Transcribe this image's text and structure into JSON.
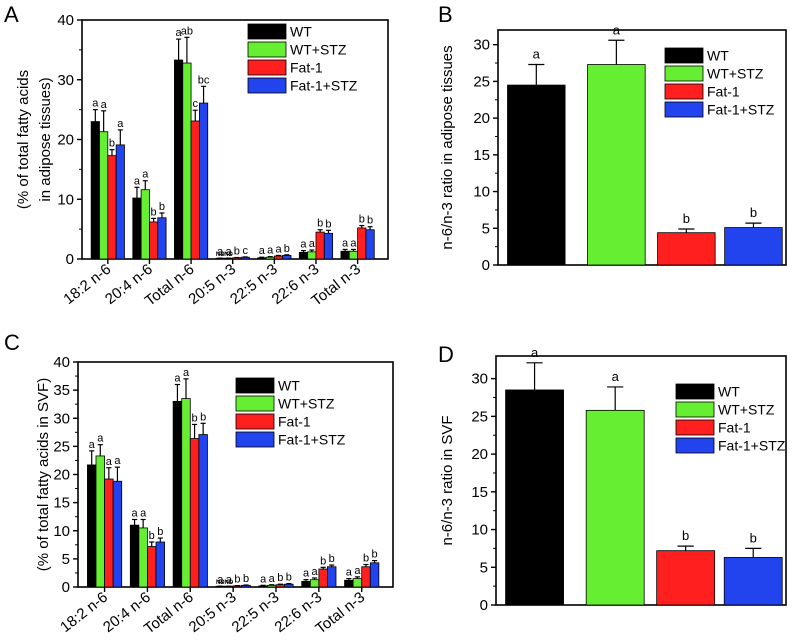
{
  "series_names": [
    "WT",
    "WT+STZ",
    "Fat-1",
    "Fat-1+STZ"
  ],
  "colors": {
    "WT": "#000000",
    "WT+STZ": "#66ee33",
    "Fat-1": "#ff1f1f",
    "Fat-1+STZ": "#2244ee"
  },
  "chart_data": [
    {
      "panel": "A",
      "type": "bar",
      "ylabel": "(% of total fatty acids in adipose tissues)",
      "ylabel_lines": [
        "(% of total fatty acids",
        "in adipose tissues)"
      ],
      "ylim": [
        0,
        40
      ],
      "yticks": [
        "0",
        "10",
        "20",
        "30",
        "40"
      ],
      "categories": [
        "18:2 n-6",
        "20:4 n-6",
        "Total n-6",
        "20:5 n-3",
        "22:5 n-3",
        "22:6 n-3",
        "Total n-3"
      ],
      "series": [
        {
          "name": "WT",
          "values": [
            23.0,
            10.2,
            33.3,
            0.1,
            0.2,
            1.1,
            1.3
          ],
          "errors": [
            2.0,
            1.8,
            3.5,
            0.05,
            0.1,
            0.3,
            0.3
          ]
        },
        {
          "name": "WT+STZ",
          "values": [
            21.3,
            11.6,
            32.8,
            0.1,
            0.3,
            1.2,
            1.3
          ],
          "errors": [
            3.5,
            1.5,
            4.3,
            0.05,
            0.1,
            0.3,
            0.3
          ]
        },
        {
          "name": "Fat-1",
          "values": [
            17.3,
            6.2,
            23.1,
            0.2,
            0.5,
            4.5,
            5.2
          ],
          "errors": [
            1.0,
            0.6,
            1.8,
            0.05,
            0.1,
            0.4,
            0.4
          ]
        },
        {
          "name": "Fat-1+STZ",
          "values": [
            19.1,
            6.9,
            26.1,
            0.3,
            0.6,
            4.3,
            4.9
          ],
          "errors": [
            2.5,
            0.8,
            2.8,
            0.05,
            0.1,
            0.5,
            0.5
          ]
        }
      ],
      "labels": [
        [
          "a",
          "a",
          "a",
          "a",
          "a",
          "a",
          "a"
        ],
        [
          "a",
          "a",
          "ab",
          "a",
          "a",
          "a",
          "a"
        ],
        [
          "b",
          "b",
          "c",
          "b",
          "a",
          "b",
          "b"
        ],
        [
          "a",
          "b",
          "bc",
          "c",
          "b",
          "b",
          "b"
        ]
      ],
      "nd": [
        [
          false,
          false,
          false,
          true,
          false,
          false,
          false
        ],
        [
          false,
          false,
          false,
          true,
          false,
          false,
          false
        ],
        [
          false,
          false,
          false,
          false,
          false,
          false,
          false
        ],
        [
          false,
          false,
          false,
          false,
          false,
          false,
          false
        ]
      ],
      "nd_text": "ND"
    },
    {
      "panel": "B",
      "type": "bar",
      "ylabel": "n-6/n-3 ratio in adipose tissues",
      "ylim": [
        0,
        32
      ],
      "yticks": [
        "0",
        "5",
        "10",
        "15",
        "20",
        "25",
        "30"
      ],
      "categories": [
        "WT",
        "WT+STZ",
        "Fat-1",
        "Fat-1+STZ"
      ],
      "values": [
        24.5,
        27.3,
        4.4,
        5.1
      ],
      "errors": [
        2.8,
        3.3,
        0.5,
        0.6
      ],
      "labels": [
        "a",
        "a",
        "b",
        "b"
      ]
    },
    {
      "panel": "C",
      "type": "bar",
      "ylabel": "(% of total fatty acids in SVF)",
      "ylim": [
        0,
        40
      ],
      "yticks": [
        "0",
        "5",
        "10",
        "15",
        "20",
        "25",
        "30",
        "35",
        "40"
      ],
      "categories": [
        "18:2 n-6",
        "20:4 n-6",
        "Total n-6",
        "20:5 n-3",
        "22:5 n-3",
        "22:6 n-3",
        "Total n-3"
      ],
      "series": [
        {
          "name": "WT",
          "values": [
            21.7,
            11.0,
            33.0,
            0.1,
            0.2,
            1.0,
            1.2
          ],
          "errors": [
            2.5,
            1.0,
            3.0,
            0.05,
            0.1,
            0.3,
            0.3
          ]
        },
        {
          "name": "WT+STZ",
          "values": [
            23.3,
            10.5,
            33.5,
            0.1,
            0.3,
            1.3,
            1.5
          ],
          "errors": [
            2.0,
            1.5,
            3.5,
            0.05,
            0.1,
            0.3,
            0.3
          ]
        },
        {
          "name": "Fat-1",
          "values": [
            19.2,
            7.2,
            26.4,
            0.2,
            0.4,
            3.2,
            3.6
          ],
          "errors": [
            2.0,
            0.8,
            2.5,
            0.05,
            0.1,
            0.3,
            0.4
          ]
        },
        {
          "name": "Fat-1+STZ",
          "values": [
            18.8,
            8.0,
            27.1,
            0.3,
            0.5,
            3.6,
            4.3
          ],
          "errors": [
            2.5,
            0.7,
            2.0,
            0.05,
            0.1,
            0.3,
            0.4
          ]
        }
      ],
      "labels": [
        [
          "a",
          "a",
          "a",
          "a",
          "a",
          "a",
          "a"
        ],
        [
          "a",
          "a",
          "a",
          "a",
          "a",
          "a",
          "a"
        ],
        [
          "a",
          "b",
          "b",
          "b",
          "b",
          "b",
          "b"
        ],
        [
          "a",
          "b",
          "b",
          "b",
          "b",
          "b",
          "b"
        ]
      ],
      "nd": [
        [
          false,
          false,
          false,
          true,
          false,
          false,
          false
        ],
        [
          false,
          false,
          false,
          true,
          false,
          false,
          false
        ],
        [
          false,
          false,
          false,
          false,
          false,
          false,
          false
        ],
        [
          false,
          false,
          false,
          false,
          false,
          false,
          false
        ]
      ],
      "nd_text": "ND"
    },
    {
      "panel": "D",
      "type": "bar",
      "ylabel": "n-6/n-3 ratio in SVF",
      "ylim": [
        0,
        33
      ],
      "yticks": [
        "0",
        "5",
        "10",
        "15",
        "20",
        "25",
        "30"
      ],
      "categories": [
        "WT",
        "WT+STZ",
        "Fat-1",
        "Fat-1+STZ"
      ],
      "values": [
        28.5,
        25.8,
        7.2,
        6.3
      ],
      "errors": [
        3.6,
        3.1,
        0.6,
        1.2
      ],
      "labels": [
        "a",
        "a",
        "b",
        "b"
      ]
    }
  ]
}
